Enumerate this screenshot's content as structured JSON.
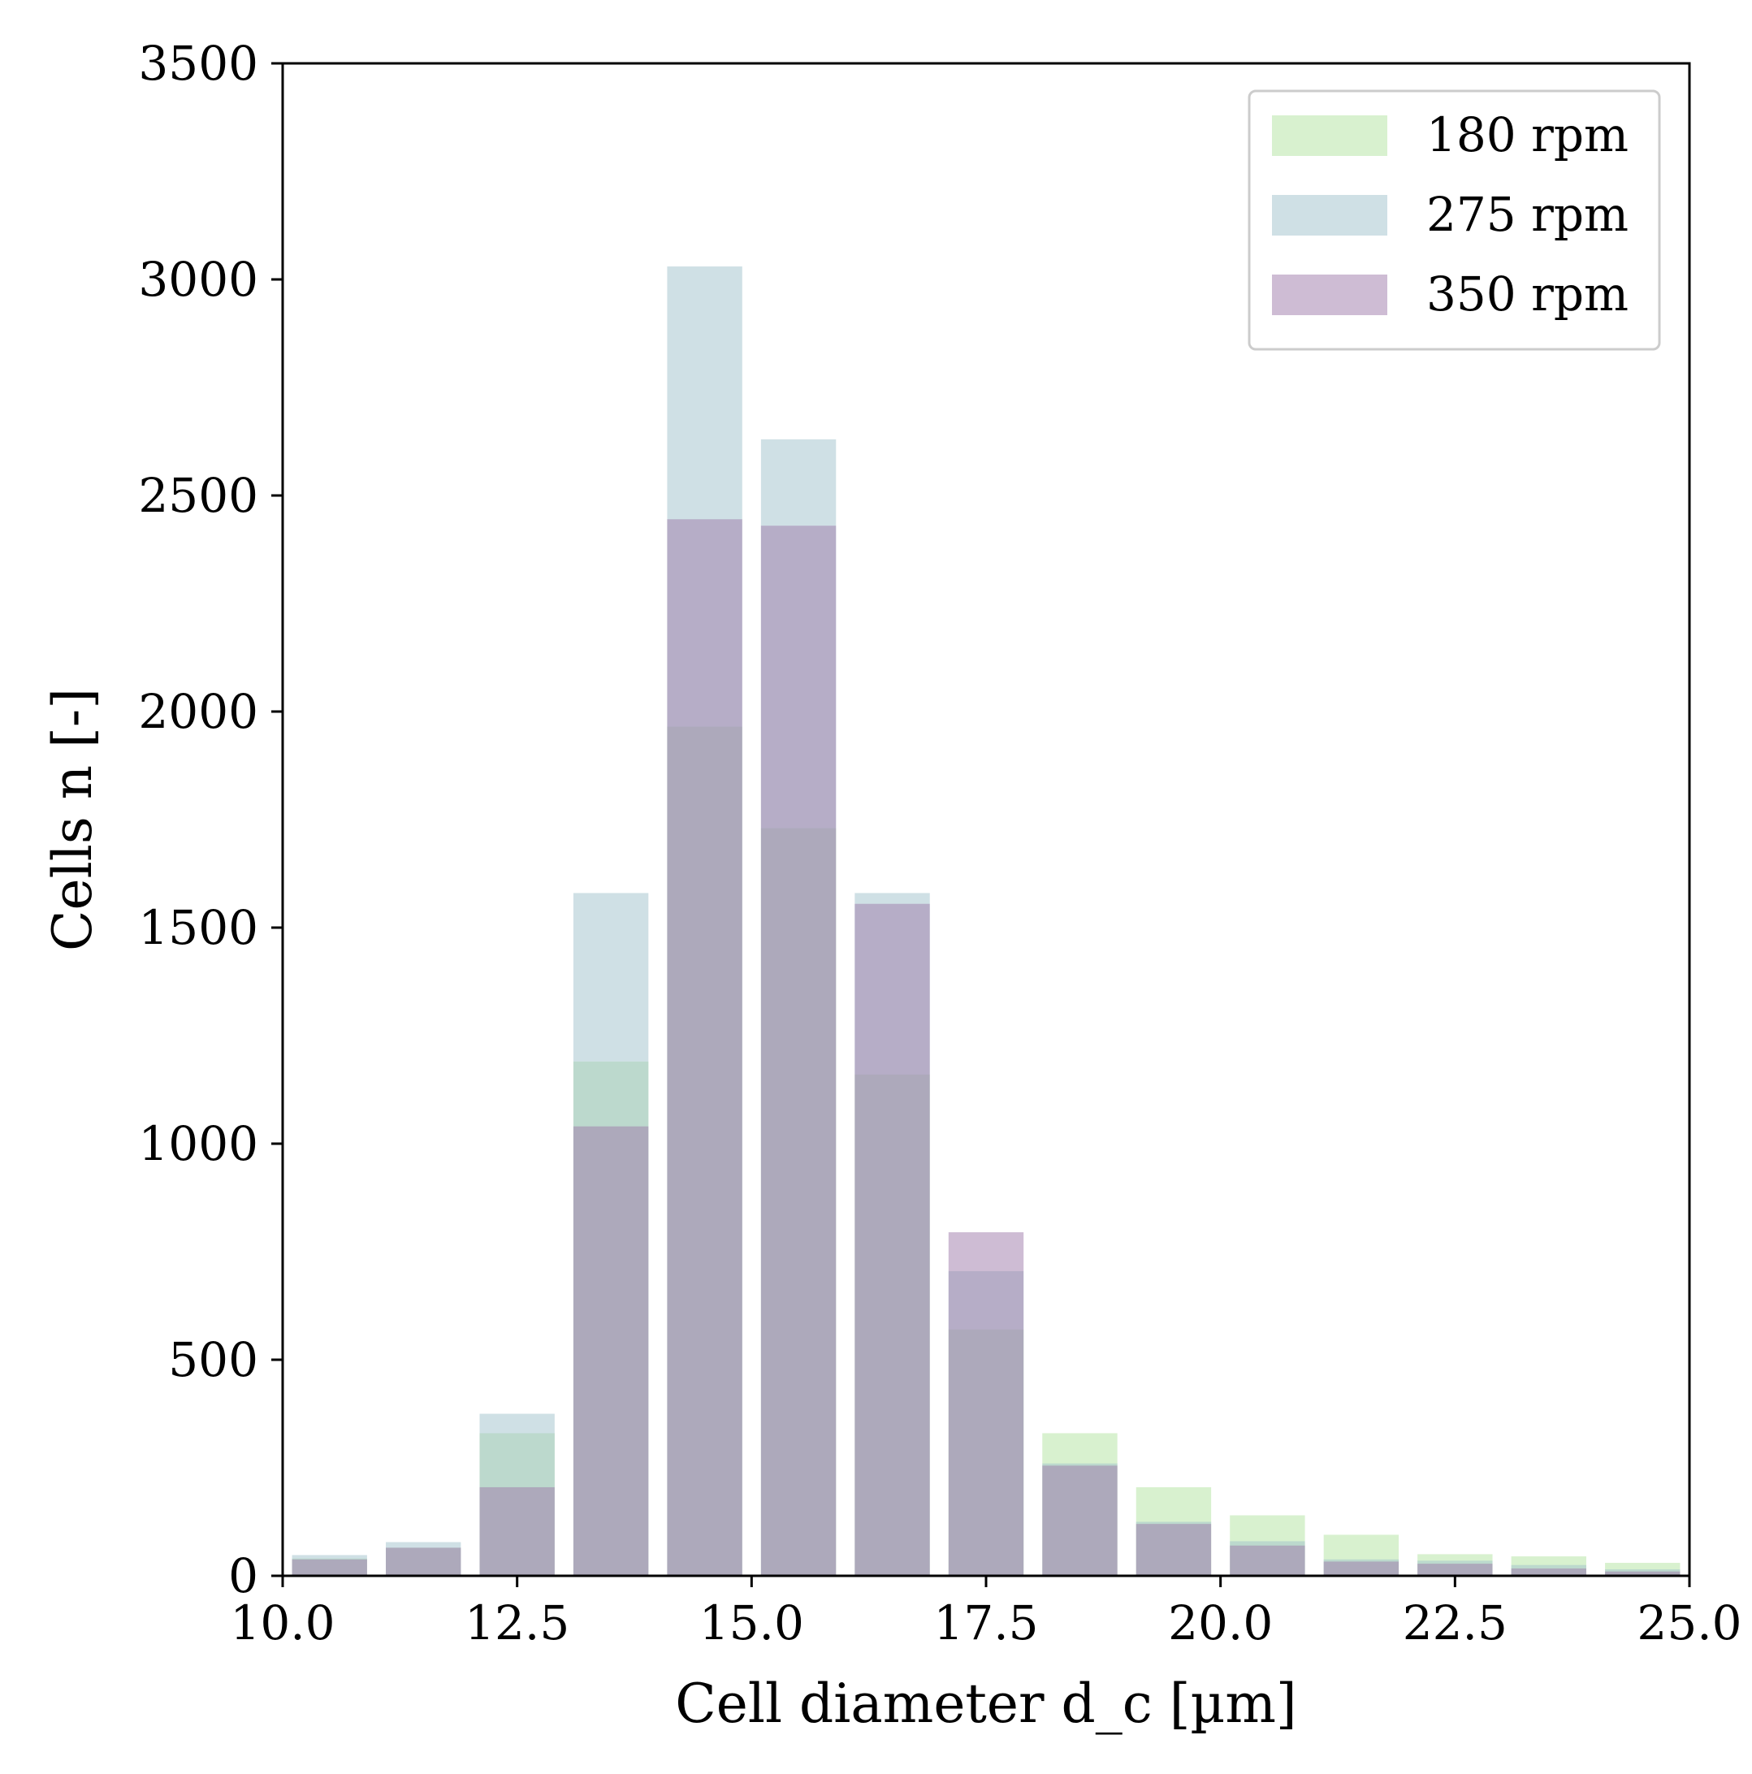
{
  "chart_data": {
    "type": "bar",
    "xlabel": "Cell diameter d_c [µm]",
    "ylabel": "Cells n [-]",
    "xlim": [
      10.0,
      25.0
    ],
    "ylim": [
      0,
      3500
    ],
    "xticks": [
      "10.0",
      "12.5",
      "15.0",
      "17.5",
      "20.0",
      "22.5",
      "25.0"
    ],
    "yticks": [
      "0",
      "500",
      "1000",
      "1500",
      "2000",
      "2500",
      "3000",
      "3500"
    ],
    "bin_width": 1.0,
    "bar_width": 0.8,
    "x": [
      10.5,
      11.5,
      12.5,
      13.5,
      14.5,
      15.5,
      16.5,
      17.5,
      18.5,
      19.5,
      20.5,
      21.5,
      22.5,
      23.5,
      24.5
    ],
    "series": [
      {
        "name": "180 rpm",
        "color": "#b2e3a0",
        "values": [
          40,
          65,
          330,
          1190,
          1965,
          1730,
          1160,
          570,
          330,
          205,
          140,
          95,
          50,
          45,
          30
        ]
      },
      {
        "name": "275 rpm",
        "color": "#9fc1cb",
        "values": [
          48,
          78,
          375,
          1580,
          3030,
          2630,
          1580,
          705,
          260,
          125,
          80,
          38,
          35,
          25,
          15
        ]
      },
      {
        "name": "350 rpm",
        "color": "#9e7aaa",
        "values": [
          38,
          65,
          205,
          1040,
          2445,
          2430,
          1555,
          795,
          255,
          120,
          70,
          33,
          28,
          17,
          10
        ]
      }
    ],
    "opacity": 0.5,
    "legend_position": "top-right",
    "grid": false
  }
}
